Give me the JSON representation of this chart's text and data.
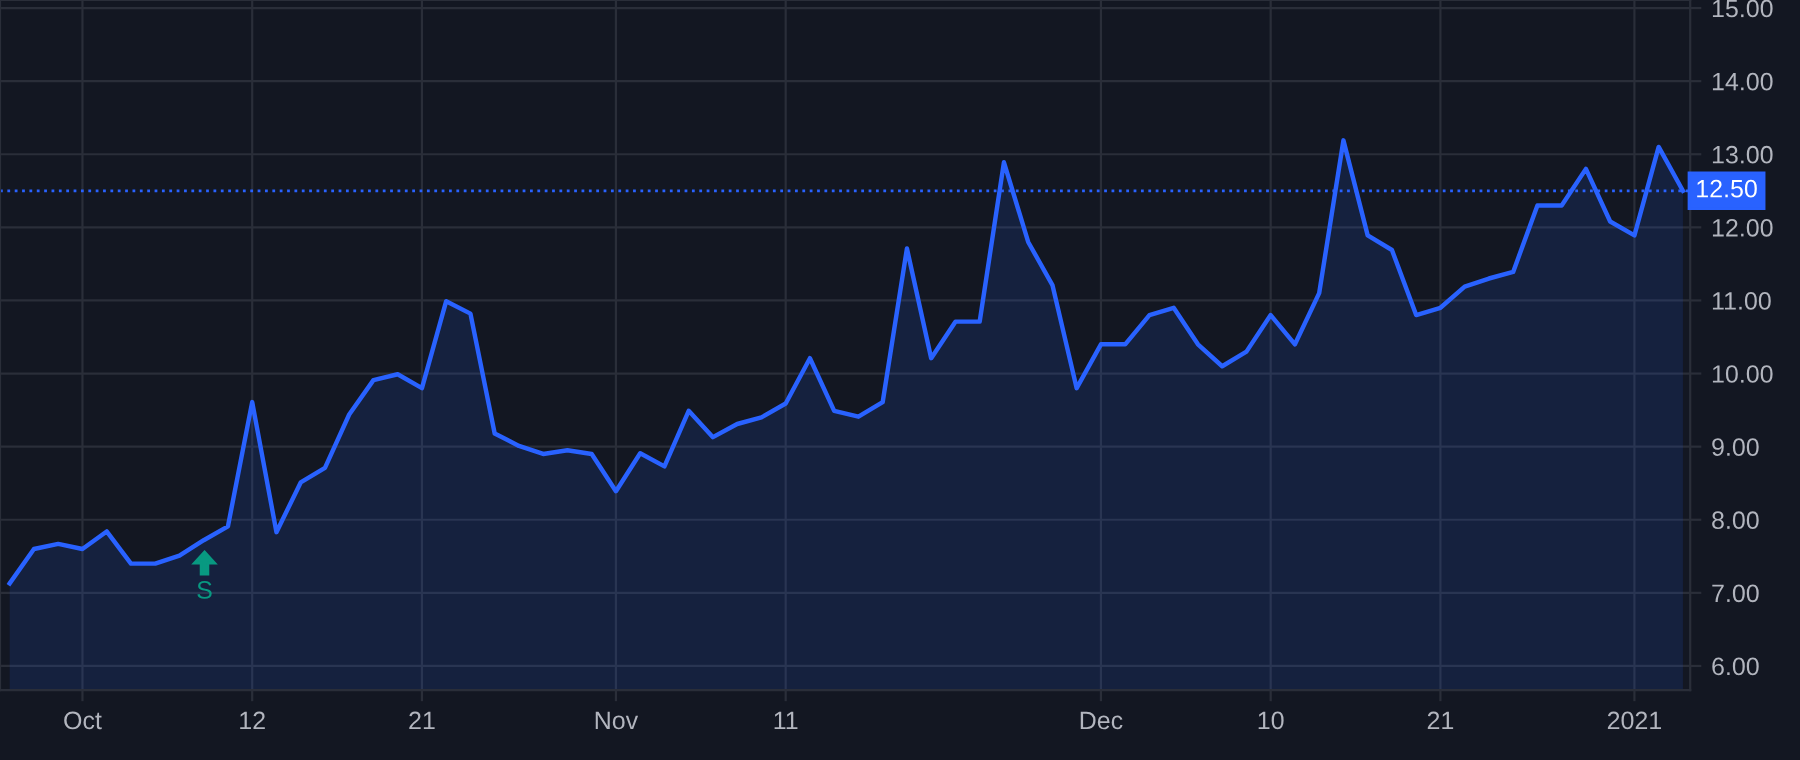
{
  "chart_data": {
    "type": "area",
    "categories": [
      null,
      null,
      null,
      "Oct",
      null,
      null,
      null,
      null,
      null,
      null,
      "12",
      null,
      null,
      null,
      null,
      null,
      null,
      "21",
      null,
      null,
      null,
      null,
      null,
      null,
      null,
      "Nov",
      null,
      null,
      null,
      null,
      null,
      null,
      "11",
      null,
      null,
      null,
      null,
      null,
      null,
      null,
      null,
      null,
      null,
      null,
      null,
      "Dec",
      null,
      null,
      null,
      null,
      null,
      null,
      "10",
      null,
      null,
      null,
      null,
      null,
      null,
      "21",
      null,
      null,
      null,
      null,
      null,
      null,
      null,
      "2021",
      null,
      null
    ],
    "series": [
      {
        "color": "#2962ff",
        "values": [
          7.13,
          7.6,
          7.67,
          7.6,
          7.84,
          7.4,
          7.4,
          7.51,
          7.72,
          7.91,
          9.61,
          7.83,
          8.51,
          8.71,
          9.44,
          9.91,
          9.99,
          9.8,
          10.99,
          10.82,
          9.18,
          9.01,
          8.9,
          8.95,
          8.9,
          8.39,
          8.91,
          8.73,
          9.49,
          9.13,
          9.31,
          9.4,
          9.59,
          10.21,
          9.49,
          9.41,
          9.61,
          11.71,
          10.21,
          10.71,
          10.71,
          12.89,
          11.8,
          11.21,
          9.8,
          10.4,
          10.4,
          10.8,
          10.9,
          10.4,
          10.1,
          10.3,
          10.8,
          10.4,
          11.1,
          13.19,
          11.89,
          11.69,
          10.8,
          10.9,
          11.19,
          11.3,
          11.39,
          12.3,
          12.3,
          12.8,
          12.08,
          11.89,
          13.1,
          12.5
        ]
      }
    ],
    "ylim": [
      5.67,
      15.11
    ],
    "yticks": [
      {
        "value": 6,
        "label": "6.00"
      },
      {
        "value": 7,
        "label": "7.00"
      },
      {
        "value": 8,
        "label": "8.00"
      },
      {
        "value": 9,
        "label": "9.00"
      },
      {
        "value": 10,
        "label": "10.00"
      },
      {
        "value": 11,
        "label": "11.00"
      },
      {
        "value": 12,
        "label": "12.00"
      },
      {
        "value": 13,
        "label": "13.00"
      },
      {
        "value": 14,
        "label": "14.00"
      },
      {
        "value": 15,
        "label": "15.00"
      }
    ],
    "ref_lines": [
      {
        "axis": "y",
        "value": 12.5,
        "label": "12.50",
        "color": "#2962ff",
        "line_style": "dotted"
      }
    ],
    "annotations": [
      "S"
    ],
    "grid": true,
    "legend": false,
    "marker": "none",
    "line_style": "solid"
  }
}
